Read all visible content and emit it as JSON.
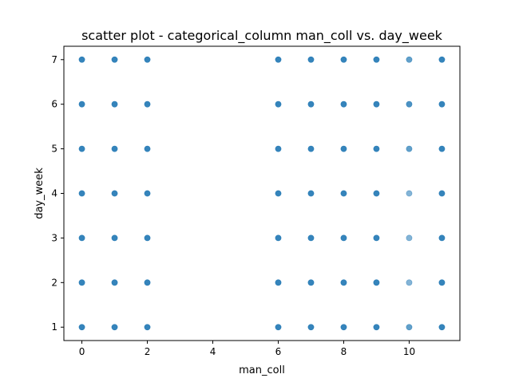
{
  "chart_data": {
    "type": "scatter",
    "title": "scatter plot - categorical_column man_coll vs. day_week",
    "xlabel": "man_coll",
    "ylabel": "day_week",
    "xlim": [
      -0.55,
      11.55
    ],
    "ylim": [
      0.7,
      7.3
    ],
    "xticks": [
      0,
      2,
      4,
      6,
      8,
      10
    ],
    "yticks": [
      1,
      2,
      3,
      4,
      5,
      6,
      7
    ],
    "grid": false,
    "marker_color": "#1f77b4",
    "series": [
      {
        "points": [
          {
            "x": 0,
            "y": 1,
            "alpha": 0.9
          },
          {
            "x": 0,
            "y": 2,
            "alpha": 0.9
          },
          {
            "x": 0,
            "y": 3,
            "alpha": 0.9
          },
          {
            "x": 0,
            "y": 4,
            "alpha": 0.9
          },
          {
            "x": 0,
            "y": 5,
            "alpha": 0.9
          },
          {
            "x": 0,
            "y": 6,
            "alpha": 0.9
          },
          {
            "x": 0,
            "y": 7,
            "alpha": 0.9
          },
          {
            "x": 1,
            "y": 1,
            "alpha": 0.9
          },
          {
            "x": 1,
            "y": 2,
            "alpha": 0.9
          },
          {
            "x": 1,
            "y": 3,
            "alpha": 0.9
          },
          {
            "x": 1,
            "y": 4,
            "alpha": 0.9
          },
          {
            "x": 1,
            "y": 5,
            "alpha": 0.9
          },
          {
            "x": 1,
            "y": 6,
            "alpha": 0.9
          },
          {
            "x": 1,
            "y": 7,
            "alpha": 0.9
          },
          {
            "x": 2,
            "y": 1,
            "alpha": 0.9
          },
          {
            "x": 2,
            "y": 2,
            "alpha": 0.9
          },
          {
            "x": 2,
            "y": 3,
            "alpha": 0.9
          },
          {
            "x": 2,
            "y": 4,
            "alpha": 0.9
          },
          {
            "x": 2,
            "y": 5,
            "alpha": 0.9
          },
          {
            "x": 2,
            "y": 6,
            "alpha": 0.9
          },
          {
            "x": 2,
            "y": 7,
            "alpha": 0.9
          },
          {
            "x": 6,
            "y": 1,
            "alpha": 0.9
          },
          {
            "x": 6,
            "y": 2,
            "alpha": 0.9
          },
          {
            "x": 6,
            "y": 3,
            "alpha": 0.9
          },
          {
            "x": 6,
            "y": 4,
            "alpha": 0.9
          },
          {
            "x": 6,
            "y": 5,
            "alpha": 0.9
          },
          {
            "x": 6,
            "y": 6,
            "alpha": 0.9
          },
          {
            "x": 6,
            "y": 7,
            "alpha": 0.9
          },
          {
            "x": 7,
            "y": 1,
            "alpha": 0.9
          },
          {
            "x": 7,
            "y": 2,
            "alpha": 0.9
          },
          {
            "x": 7,
            "y": 3,
            "alpha": 0.9
          },
          {
            "x": 7,
            "y": 4,
            "alpha": 0.9
          },
          {
            "x": 7,
            "y": 5,
            "alpha": 0.9
          },
          {
            "x": 7,
            "y": 6,
            "alpha": 0.9
          },
          {
            "x": 7,
            "y": 7,
            "alpha": 0.9
          },
          {
            "x": 8,
            "y": 1,
            "alpha": 0.9
          },
          {
            "x": 8,
            "y": 2,
            "alpha": 0.9
          },
          {
            "x": 8,
            "y": 3,
            "alpha": 0.9
          },
          {
            "x": 8,
            "y": 4,
            "alpha": 0.9
          },
          {
            "x": 8,
            "y": 5,
            "alpha": 0.9
          },
          {
            "x": 8,
            "y": 6,
            "alpha": 0.9
          },
          {
            "x": 8,
            "y": 7,
            "alpha": 0.9
          },
          {
            "x": 9,
            "y": 1,
            "alpha": 0.9
          },
          {
            "x": 9,
            "y": 2,
            "alpha": 0.9
          },
          {
            "x": 9,
            "y": 3,
            "alpha": 0.9
          },
          {
            "x": 9,
            "y": 4,
            "alpha": 0.9
          },
          {
            "x": 9,
            "y": 5,
            "alpha": 0.9
          },
          {
            "x": 9,
            "y": 6,
            "alpha": 0.9
          },
          {
            "x": 9,
            "y": 7,
            "alpha": 0.9
          },
          {
            "x": 10,
            "y": 1,
            "alpha": 0.7
          },
          {
            "x": 10,
            "y": 2,
            "alpha": 0.55
          },
          {
            "x": 10,
            "y": 3,
            "alpha": 0.55
          },
          {
            "x": 10,
            "y": 4,
            "alpha": 0.55
          },
          {
            "x": 10,
            "y": 5,
            "alpha": 0.7
          },
          {
            "x": 10,
            "y": 6,
            "alpha": 0.8
          },
          {
            "x": 10,
            "y": 7,
            "alpha": 0.7
          },
          {
            "x": 11,
            "y": 1,
            "alpha": 0.9
          },
          {
            "x": 11,
            "y": 2,
            "alpha": 0.9
          },
          {
            "x": 11,
            "y": 3,
            "alpha": 0.9
          },
          {
            "x": 11,
            "y": 4,
            "alpha": 0.9
          },
          {
            "x": 11,
            "y": 5,
            "alpha": 0.9
          },
          {
            "x": 11,
            "y": 6,
            "alpha": 0.9
          },
          {
            "x": 11,
            "y": 7,
            "alpha": 0.9
          }
        ]
      }
    ]
  }
}
